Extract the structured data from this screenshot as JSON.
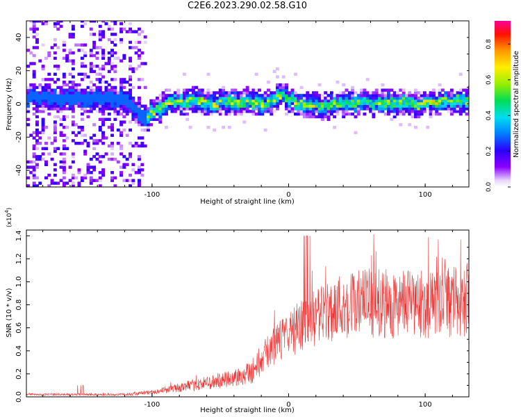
{
  "title": "C2E6.2023.290.02.58.G10",
  "chart_data": [
    {
      "type": "heatmap",
      "xlabel": "Height of straight line (km)",
      "ylabel": "Frequency (Hz)",
      "xlim": [
        -192,
        132
      ],
      "ylim": [
        -50,
        50
      ],
      "x_ticks": [
        -100,
        0,
        100
      ],
      "y_ticks": [
        -40,
        -20,
        0,
        20,
        40
      ],
      "colorbar": {
        "label": "Normalized spectral amplitude",
        "range": [
          0,
          0.93
        ],
        "ticks": [
          "0.0",
          "0.2",
          "0.4",
          "0.6",
          "0.8"
        ]
      },
      "ridge": {
        "x": [
          -192,
          -120,
          -106,
          -100,
          -90,
          -70,
          -50,
          -30,
          -20,
          -15,
          -10,
          -5,
          0,
          10,
          20,
          40,
          60,
          80,
          90,
          100,
          120,
          132
        ],
        "freq_hz": [
          3,
          2,
          -10,
          -5,
          0,
          1,
          0,
          1,
          -1,
          0,
          3,
          4,
          2,
          -1,
          -2,
          -1,
          0,
          0,
          -1,
          0,
          1,
          2
        ]
      }
    },
    {
      "type": "line",
      "xlabel": "Height of straight line (km)",
      "ylabel": "SNR (10 * v/v)",
      "y_multiplier": "(x10",
      "y_multiplier_exp": "4",
      "y_multiplier_close": ")",
      "xlim": [
        -192,
        132
      ],
      "ylim": [
        0,
        1.45
      ],
      "x_ticks": [
        -100,
        0,
        100
      ],
      "y_ticks": [
        "0.0",
        "0.2",
        "0.4",
        "0.6",
        "0.8",
        "1.0",
        "1.2",
        "1.4"
      ],
      "color": "#ee3333",
      "envelope": {
        "x": [
          -192,
          -150,
          -120,
          -100,
          -80,
          -60,
          -40,
          -25,
          -15,
          -5,
          0,
          10,
          20,
          30,
          40,
          60,
          80,
          100,
          120,
          132
        ],
        "y": [
          0.02,
          0.02,
          0.02,
          0.04,
          0.08,
          0.12,
          0.16,
          0.24,
          0.4,
          0.5,
          0.55,
          0.62,
          0.68,
          0.75,
          0.8,
          0.82,
          0.8,
          0.8,
          0.82,
          0.85
        ]
      }
    }
  ]
}
